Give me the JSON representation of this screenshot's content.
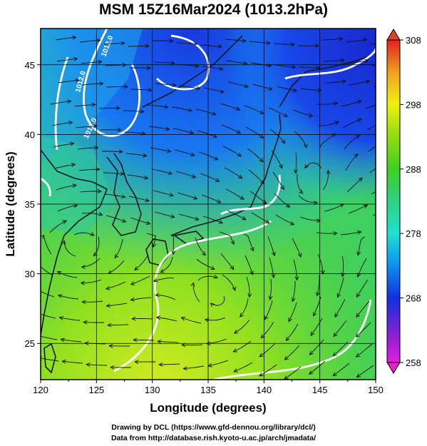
{
  "title": "MSM 15Z16Mar2024 (1013.2hPa)",
  "chart_data": {
    "type": "heatmap",
    "title": "MSM 15Z16Mar2024 (1013.2hPa)",
    "xlabel": "Longitude (degrees)",
    "ylabel": "Latitude  (degrees)",
    "xlim": [
      120,
      150
    ],
    "ylim": [
      22.4,
      47.6
    ],
    "x_ticks": [
      120,
      125,
      130,
      135,
      140,
      145,
      150
    ],
    "y_ticks": [
      25,
      30,
      35,
      40,
      45
    ],
    "grid": true,
    "colorbar": {
      "range": [
        258,
        308
      ],
      "ticks": [
        258,
        268,
        278,
        288,
        298,
        308
      ],
      "colors": [
        "#e020e0",
        "#8020d0",
        "#1030e0",
        "#10a0f0",
        "#20e0d0",
        "#30d070",
        "#40d020",
        "#a0e010",
        "#f0f010",
        "#f0a020",
        "#e02020"
      ]
    },
    "contour_labels": [
      "1012.0",
      "1012.0",
      "1012.0"
    ],
    "overlays": [
      "coastlines",
      "streamlines",
      "pressure contours"
    ]
  },
  "credits": {
    "line1": "Drawing by DCL (https://www.gfd-dennou.org/library/dcl/)",
    "line2": "Data from http://database.rish.kyoto-u.ac.jp/arch/jmadata/"
  }
}
